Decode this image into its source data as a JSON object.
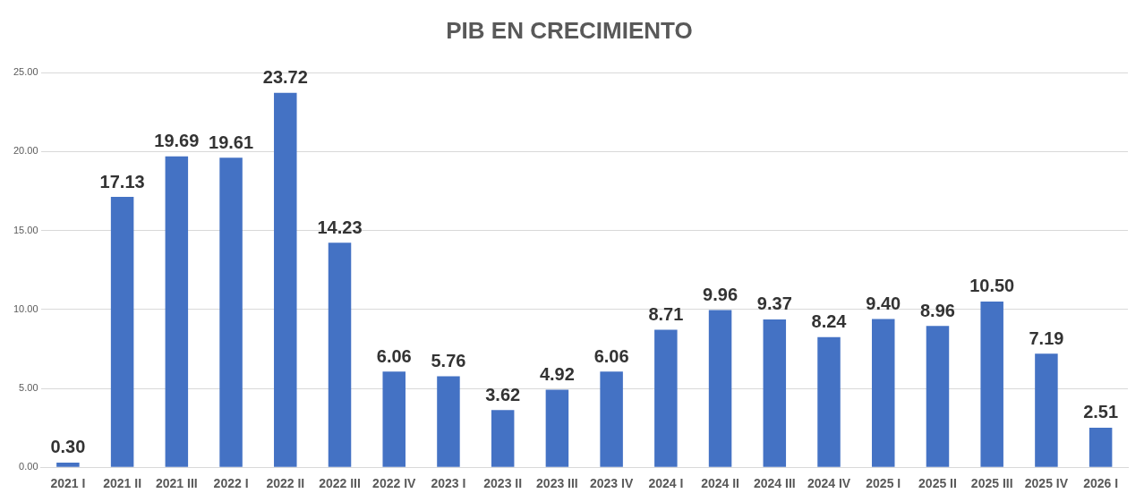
{
  "chart_data": {
    "type": "bar",
    "title": "PIB EN CRECIMIENTO",
    "categories": [
      "2021 I",
      "2021 II",
      "2021 III",
      "2022 I",
      "2022 II",
      "2022 III",
      "2022 IV",
      "2023 I",
      "2023 II",
      "2023 III",
      "2023 IV",
      "2024 I",
      "2024 II",
      "2024 III",
      "2024 IV",
      "2025 I",
      "2025 II",
      "2025 III",
      "2025 IV",
      "2026 I"
    ],
    "values": [
      0.3,
      17.13,
      19.69,
      19.61,
      23.72,
      14.23,
      6.06,
      5.76,
      3.62,
      4.92,
      6.06,
      8.71,
      9.96,
      9.37,
      8.24,
      9.4,
      8.96,
      10.5,
      7.19,
      2.51
    ],
    "value_labels": [
      "0.30",
      "17.13",
      "19.69",
      "19.61",
      "23.72",
      "14.23",
      "6.06",
      "5.76",
      "3.62",
      "4.92",
      "6.06",
      "8.71",
      "9.96",
      "9.37",
      "8.24",
      "9.40",
      "8.96",
      "10.50",
      "7.19",
      "2.51"
    ],
    "color": "#4472c4",
    "ylim": [
      0,
      25
    ],
    "yticks": [
      {
        "value": 0,
        "label": "0.00"
      },
      {
        "value": 5,
        "label": "5.00"
      },
      {
        "value": 10,
        "label": "10.00"
      },
      {
        "value": 15,
        "label": "15.00"
      },
      {
        "value": 20,
        "label": "20.00"
      },
      {
        "value": 25,
        "label": "25.00"
      }
    ],
    "grid": "y"
  }
}
